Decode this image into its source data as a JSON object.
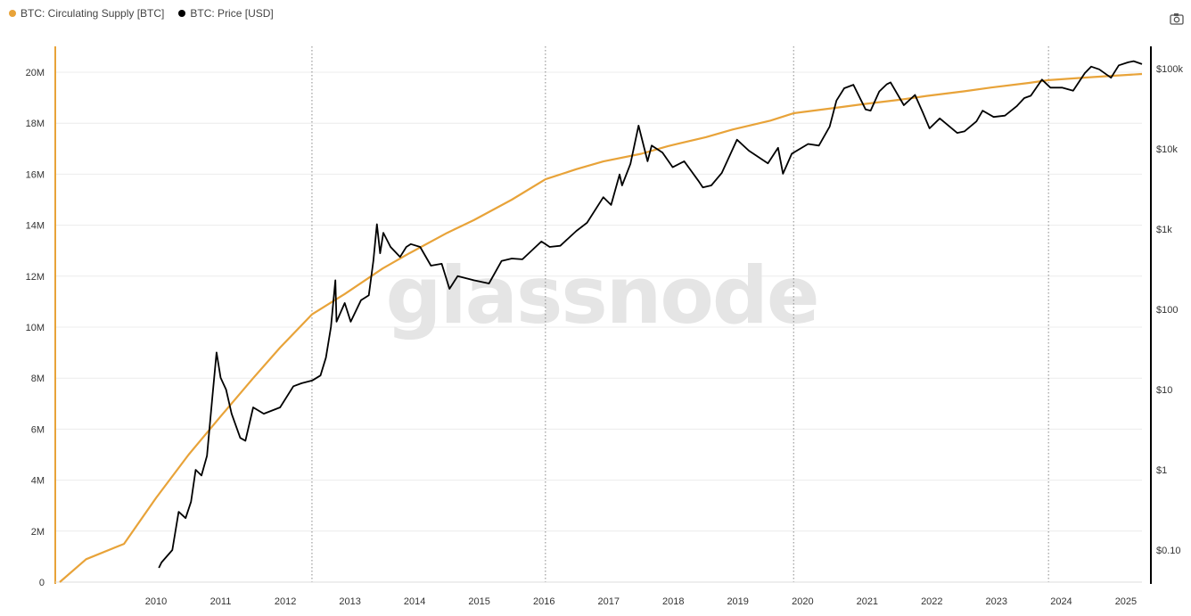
{
  "legend": {
    "supply_label": "BTC: Circulating Supply [BTC]",
    "price_label": "BTC: Price [USD]",
    "supply_color": "#e8a339",
    "price_color": "#000000"
  },
  "watermark": "glassnode",
  "chart_data": {
    "type": "line",
    "title": "",
    "grid": "horizontal",
    "legend_position": "top-left",
    "x_axis": {
      "type": "date",
      "range": [
        "2009-01-03",
        "2025-09-30"
      ],
      "tick_labels": [
        "2010",
        "2011",
        "2012",
        "2013",
        "2014",
        "2015",
        "2016",
        "2017",
        "2018",
        "2019",
        "2020",
        "2021",
        "2022",
        "2023",
        "2024",
        "2025"
      ]
    },
    "halving_markers": [
      "2012-11-28",
      "2016-07-09",
      "2020-05-11",
      "2024-04-20"
    ],
    "y_left": {
      "scale": "linear",
      "range": [
        0,
        21000000
      ],
      "ticks": [
        0,
        2000000,
        4000000,
        6000000,
        8000000,
        10000000,
        12000000,
        14000000,
        16000000,
        18000000,
        20000000
      ],
      "tick_labels": [
        "0",
        "2M",
        "4M",
        "6M",
        "8M",
        "10M",
        "12M",
        "14M",
        "16M",
        "18M",
        "20M"
      ]
    },
    "y_right": {
      "scale": "log",
      "range": [
        0.02,
        200000
      ],
      "ticks": [
        0.1,
        1,
        10,
        100,
        1000,
        10000,
        100000
      ],
      "tick_labels": [
        "$0.10",
        "$1",
        "$10",
        "$100",
        "$1k",
        "$10k",
        "$100k"
      ]
    },
    "series": [
      {
        "name": "BTC: Circulating Supply [BTC]",
        "axis": "left",
        "color": "#e8a339",
        "x": [
          "2009-01-03",
          "2009-06-01",
          "2010-01-01",
          "2010-07-01",
          "2011-01-01",
          "2011-07-01",
          "2012-01-01",
          "2012-06-01",
          "2012-11-28",
          "2013-06-01",
          "2014-01-01",
          "2014-06-01",
          "2015-01-01",
          "2015-06-01",
          "2016-01-01",
          "2016-07-09",
          "2017-01-01",
          "2017-06-01",
          "2018-01-01",
          "2018-06-01",
          "2019-01-01",
          "2019-06-01",
          "2020-01-01",
          "2020-05-11",
          "2021-01-01",
          "2021-06-01",
          "2022-01-01",
          "2022-06-01",
          "2023-01-01",
          "2023-06-01",
          "2024-01-01",
          "2024-04-20",
          "2025-01-01",
          "2025-09-30"
        ],
        "y": [
          0,
          900000,
          1500000,
          3300000,
          5000000,
          6500000,
          8000000,
          9200000,
          10500000,
          11300000,
          12300000,
          12900000,
          13700000,
          14200000,
          15000000,
          15800000,
          16200000,
          16500000,
          16800000,
          17100000,
          17450000,
          17750000,
          18100000,
          18390000,
          18600000,
          18740000,
          18920000,
          19070000,
          19250000,
          19400000,
          19580000,
          19690000,
          19810000,
          19930000
        ]
      },
      {
        "name": "BTC: Price [USD]",
        "axis": "right",
        "color": "#000000",
        "x": [
          "2010-07-17",
          "2010-08-01",
          "2010-10-01",
          "2010-11-06",
          "2010-12-15",
          "2011-01-15",
          "2011-02-10",
          "2011-03-15",
          "2011-04-15",
          "2011-05-15",
          "2011-06-08",
          "2011-07-01",
          "2011-08-01",
          "2011-09-01",
          "2011-10-20",
          "2011-11-18",
          "2012-01-01",
          "2012-03-01",
          "2012-06-01",
          "2012-08-15",
          "2012-10-01",
          "2012-12-01",
          "2013-01-15",
          "2013-02-15",
          "2013-03-15",
          "2013-04-09",
          "2013-04-16",
          "2013-06-01",
          "2013-07-05",
          "2013-09-01",
          "2013-10-15",
          "2013-11-10",
          "2013-11-30",
          "2013-12-18",
          "2014-01-05",
          "2014-02-15",
          "2014-04-10",
          "2014-05-15",
          "2014-06-10",
          "2014-08-01",
          "2014-10-01",
          "2014-12-01",
          "2015-01-14",
          "2015-03-01",
          "2015-06-01",
          "2015-08-25",
          "2015-11-04",
          "2016-01-01",
          "2016-03-01",
          "2016-06-16",
          "2016-08-02",
          "2016-10-01",
          "2016-12-31",
          "2017-03-01",
          "2017-06-01",
          "2017-07-15",
          "2017-09-01",
          "2017-09-15",
          "2017-11-01",
          "2017-12-17",
          "2018-02-06",
          "2018-03-01",
          "2018-05-01",
          "2018-06-28",
          "2018-09-01",
          "2018-11-20",
          "2018-12-15",
          "2019-02-01",
          "2019-04-01",
          "2019-06-26",
          "2019-09-01",
          "2019-12-18",
          "2020-02-13",
          "2020-03-12",
          "2020-05-01",
          "2020-08-01",
          "2020-10-01",
          "2020-12-01",
          "2021-01-08",
          "2021-02-21",
          "2021-04-14",
          "2021-06-22",
          "2021-07-20",
          "2021-09-07",
          "2021-10-20",
          "2021-11-10",
          "2022-01-24",
          "2022-03-28",
          "2022-05-12",
          "2022-06-18",
          "2022-08-15",
          "2022-11-21",
          "2023-01-01",
          "2023-03-10",
          "2023-04-14",
          "2023-06-15",
          "2023-08-18",
          "2023-10-23",
          "2023-12-05",
          "2024-01-11",
          "2024-03-14",
          "2024-05-01",
          "2024-07-05",
          "2024-09-06",
          "2024-11-11",
          "2024-12-17",
          "2025-02-01",
          "2025-04-08",
          "2025-05-22",
          "2025-07-14",
          "2025-08-14",
          "2025-09-30"
        ],
        "y": [
          0.06,
          0.07,
          0.1,
          0.3,
          0.25,
          0.4,
          1,
          0.85,
          1.5,
          8,
          29,
          14,
          10,
          5,
          2.5,
          2.3,
          6,
          5,
          6,
          11,
          12,
          13,
          15,
          25,
          60,
          230,
          70,
          120,
          70,
          130,
          150,
          400,
          1150,
          500,
          900,
          600,
          450,
          600,
          650,
          600,
          350,
          370,
          180,
          260,
          230,
          210,
          400,
          430,
          420,
          700,
          600,
          620,
          950,
          1200,
          2500,
          2000,
          4800,
          3500,
          6500,
          19500,
          7000,
          11000,
          9000,
          5900,
          7000,
          4000,
          3300,
          3500,
          5000,
          13000,
          9500,
          6600,
          10300,
          4900,
          8700,
          11500,
          11000,
          19000,
          40000,
          57000,
          63000,
          31000,
          30000,
          52000,
          64000,
          67500,
          35000,
          47000,
          28000,
          18000,
          24000,
          15800,
          16500,
          22000,
          30000,
          25000,
          26000,
          34000,
          43000,
          46000,
          73000,
          58000,
          58000,
          53000,
          88000,
          106000,
          98000,
          77000,
          110000,
          120000,
          124000,
          114000
        ]
      }
    ]
  }
}
